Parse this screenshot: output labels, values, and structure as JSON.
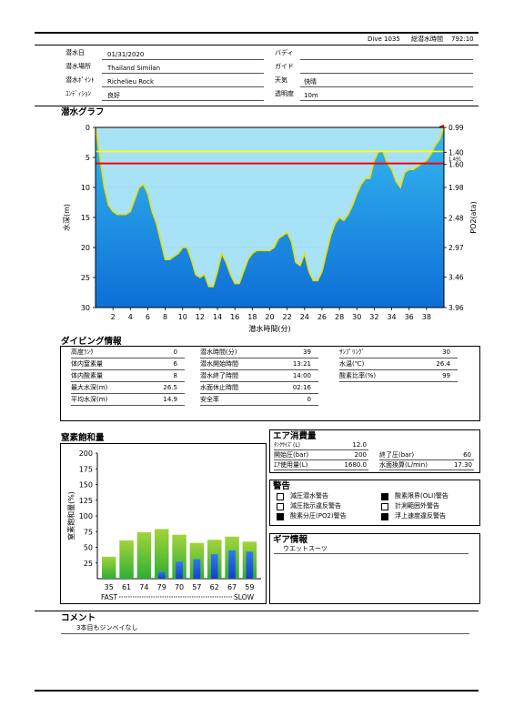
{
  "header": {
    "dive_no": "Dive 1035",
    "total_time_label": "総潜水時間",
    "total_time": "792:10"
  },
  "info": {
    "left": [
      {
        "label": "潜水日",
        "value": "01/31/2020"
      },
      {
        "label": "潜水場所",
        "value": "Thailand Similan"
      },
      {
        "label": "潜水ﾎﾟｲﾝﾄ",
        "value": "Richelieu Rock"
      },
      {
        "label": "ｺﾝﾃﾞｨｼｮﾝ",
        "value": "良好"
      }
    ],
    "right": [
      {
        "label": "バディ",
        "value": ""
      },
      {
        "label": "ガイド",
        "value": ""
      },
      {
        "label": "天気",
        "value": "快晴"
      },
      {
        "label": "透明度",
        "value": "10m"
      }
    ]
  },
  "graph": {
    "title": "潜水グラフ",
    "xlabel": "潜水時間(分)",
    "ylabel_left": "水深(m)",
    "ylabel_right": "PO2(ata)",
    "left_ticks": [
      "0",
      "5",
      "10",
      "15",
      "20",
      "25",
      "30"
    ],
    "right_ticks": [
      "0.99",
      "1.40",
      "1.60",
      "1.98",
      "2.48",
      "2.97",
      "3.46",
      "3.96"
    ],
    "right_small": "1.491",
    "x_ticks": [
      "2",
      "4",
      "6",
      "8",
      "10",
      "12",
      "14",
      "16",
      "18",
      "20",
      "22",
      "24",
      "26",
      "28",
      "30",
      "32",
      "34",
      "36",
      "38"
    ]
  },
  "chart_data": {
    "type": "area",
    "title": "潜水グラフ",
    "xlabel": "潜水時間(分)",
    "ylabel": "水深(m)",
    "y2label": "PO2(ata)",
    "xlim": [
      0,
      40
    ],
    "ylim": [
      30,
      0
    ],
    "y2lim": [
      3.96,
      0.99
    ],
    "x": [
      0,
      0.5,
      1,
      1.5,
      2,
      2.5,
      3,
      3.5,
      4,
      4.5,
      5,
      5.5,
      6,
      6.5,
      7,
      7.5,
      8,
      8.5,
      9,
      9.5,
      10,
      10.5,
      11,
      11.5,
      12,
      12.5,
      13,
      13.5,
      14,
      14.5,
      15,
      15.5,
      16,
      16.5,
      17,
      17.5,
      18,
      18.5,
      19,
      19.5,
      20,
      20.5,
      21,
      21.5,
      22,
      22.5,
      23,
      23.5,
      24,
      24.5,
      25,
      25.5,
      26,
      26.5,
      27,
      27.5,
      28,
      28.5,
      29,
      29.5,
      30,
      30.5,
      31,
      31.5,
      32,
      32.5,
      33,
      33.5,
      34,
      34.5,
      35,
      35.5,
      36,
      36.5,
      37,
      37.5,
      38,
      38.5,
      39,
      39.5,
      40
    ],
    "series": [
      {
        "name": "",
        "values": [
          0,
          5,
          10,
          13,
          14,
          14.5,
          14.5,
          14.5,
          14,
          12,
          10,
          9.5,
          11,
          14,
          16,
          19,
          22,
          22,
          21.5,
          21,
          20,
          20,
          22,
          24.5,
          25,
          24.5,
          26.5,
          26.5,
          24,
          21,
          22.5,
          24.5,
          26,
          26,
          24,
          22,
          21,
          20.5,
          20.5,
          20.5,
          20.5,
          20,
          18.5,
          18,
          17.5,
          19,
          22.5,
          23,
          21,
          24,
          25.5,
          25.5,
          24,
          21,
          18,
          16,
          15,
          15.5,
          14.5,
          13,
          11,
          9.5,
          8.5,
          8.5,
          5.5,
          4,
          4,
          6,
          7,
          9,
          10,
          7.5,
          7,
          7,
          6.5,
          6,
          5.5,
          4.5,
          3,
          2,
          0
        ]
      }
    ],
    "reference_lines": [
      {
        "name": "",
        "value": 4,
        "color": "#ffff00"
      },
      {
        "name": "",
        "value": 6,
        "color": "#ff0000"
      }
    ]
  },
  "diving_info": {
    "title": "ダイビング情報",
    "col1": [
      {
        "label": "高度ﾗﾝｸ",
        "value": "0"
      },
      {
        "label": "体内窒素量",
        "value": "6"
      },
      {
        "label": "体内酸素量",
        "value": "8"
      },
      {
        "label": "最大水深(m)",
        "value": "26.5"
      },
      {
        "label": "平均水深(m)",
        "value": "14.9"
      }
    ],
    "col2": [
      {
        "label": "潜水時間(分)",
        "value": "39"
      },
      {
        "label": "潜水開始時間",
        "value": "13:21"
      },
      {
        "label": "潜水終了時間",
        "value": "14:00"
      },
      {
        "label": "水面休止時間",
        "value": "02:16"
      },
      {
        "label": "安全率",
        "value": "0"
      }
    ],
    "col3": [
      {
        "label": "ｻﾝﾌﾟﾘﾝｸﾞ",
        "value": "30"
      },
      {
        "label": "水温(℃)",
        "value": "26.4"
      },
      {
        "label": "酸素比率(%)",
        "value": "99"
      }
    ]
  },
  "nitrogen": {
    "title": "窒素飽和量",
    "ylabel": "窒素飽和量(%)",
    "y_ticks": [
      "200",
      "175",
      "150",
      "125",
      "100",
      "75",
      "50",
      "25"
    ],
    "fast_label": "FAST",
    "slow_label": "SLOW",
    "categories": [
      "35",
      "61",
      "74",
      "79",
      "70",
      "57",
      "62",
      "67",
      "59"
    ]
  },
  "chart_data_nitrogen": {
    "type": "bar",
    "title": "窒素飽和量",
    "ylabel": "窒素飽和量(%)",
    "ylim": [
      0,
      200
    ],
    "categories": [
      "35",
      "61",
      "74",
      "79",
      "70",
      "57",
      "62",
      "67",
      "59"
    ],
    "series": [
      {
        "name": "",
        "values": [
          35,
          61,
          74,
          79,
          70,
          57,
          62,
          67,
          59
        ],
        "color": "#6cc23a"
      },
      {
        "name": "",
        "values": [
          0,
          0,
          0,
          11,
          27,
          31,
          39,
          45,
          43
        ],
        "color": "#1e5ce0"
      }
    ]
  },
  "air": {
    "title": "エア消費量",
    "tank_label": "ﾀﾝｸｻｲｽﾞ(L)",
    "tank_value": "12.0",
    "start_label": "開始圧(bar)",
    "start_value": "200",
    "end_label": "終了圧(bar)",
    "end_value": "60",
    "used_label": "ｴｱ使用量(L)",
    "used_value": "1680.0",
    "surface_label": "水面換算(L/min)",
    "surface_value": "17.30"
  },
  "warnings": {
    "title": "警告",
    "items": [
      {
        "label": "減圧潜水警告",
        "checked": false
      },
      {
        "label": "酸素限界(OLI)警告",
        "checked": true
      },
      {
        "label": "減圧指示違反警告",
        "checked": false
      },
      {
        "label": "計測範囲外警告",
        "checked": false
      },
      {
        "label": "酸素分圧(PO2)警告",
        "checked": true
      },
      {
        "label": "浮上速度違反警告",
        "checked": true
      }
    ]
  },
  "gear": {
    "title": "ギア情報",
    "text": "ウエットスーツ"
  },
  "comment": {
    "title": "コメント",
    "text": "3本目もジンベイなし"
  }
}
